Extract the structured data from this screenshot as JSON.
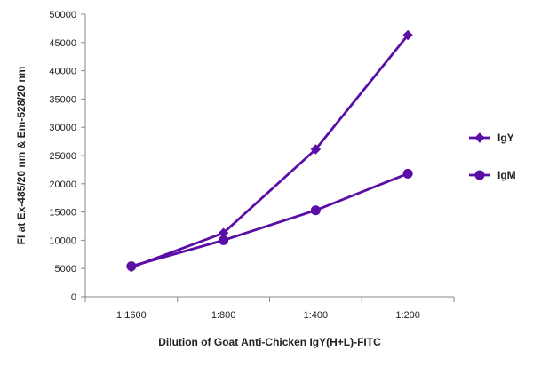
{
  "chart_data": {
    "type": "line",
    "title": "",
    "xlabel": "Dilution of Goat Anti-Chicken IgY(H+L)-FITC",
    "ylabel": "FI at Ex-485/20 nm & Em-528/20 nm",
    "categories": [
      "1:1600",
      "1:800",
      "1:400",
      "1:200"
    ],
    "ylim": [
      0,
      50000
    ],
    "yticks": [
      0,
      5000,
      10000,
      15000,
      20000,
      25000,
      30000,
      35000,
      40000,
      45000,
      50000
    ],
    "grid": false,
    "legend_position": "right",
    "series": [
      {
        "name": "IgY",
        "marker": "diamond",
        "color": "#5b0ea6",
        "values": [
          5200,
          11300,
          26100,
          46300
        ]
      },
      {
        "name": "IgM",
        "marker": "circle",
        "color": "#5b0ea6",
        "values": [
          5400,
          10000,
          15300,
          21800
        ]
      }
    ]
  }
}
